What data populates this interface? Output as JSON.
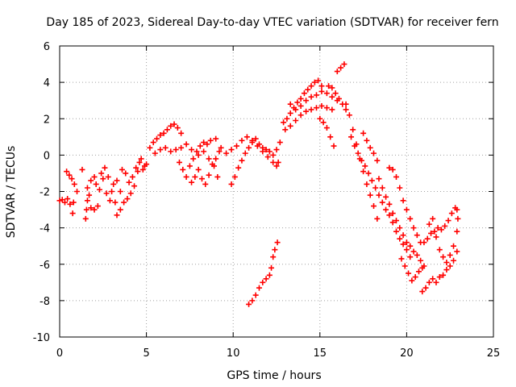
{
  "chart_data": {
    "type": "scatter",
    "title": "Day 185 of 2023, Sidereal Day-to-day VTEC variation (SDTVAR) for receiver fern",
    "xlabel": "GPS time / hours",
    "ylabel": "SDTVAR / TECUs",
    "xlim": [
      0,
      25
    ],
    "ylim": [
      -10,
      6
    ],
    "xticks": [
      0,
      5,
      10,
      15,
      20,
      25
    ],
    "yticks": [
      -10,
      -8,
      -6,
      -4,
      -2,
      0,
      2,
      4,
      6
    ],
    "grid": true,
    "marker": "+",
    "color": "#ff0000",
    "series": [
      {
        "points": [
          [
            0.0,
            -2.5
          ],
          [
            0.15,
            -2.45
          ],
          [
            0.3,
            -2.6
          ],
          [
            0.45,
            -2.4
          ],
          [
            0.6,
            -2.7
          ],
          [
            0.75,
            -3.2
          ],
          [
            0.8,
            -2.6
          ],
          [
            0.4,
            -0.9
          ],
          [
            0.55,
            -1.1
          ],
          [
            0.7,
            -1.3
          ],
          [
            0.85,
            -1.6
          ],
          [
            1.0,
            -2.0
          ],
          [
            1.3,
            -0.8
          ],
          [
            1.5,
            -3.5
          ],
          [
            1.55,
            -3.0
          ],
          [
            1.6,
            -2.5
          ],
          [
            1.7,
            -2.2
          ],
          [
            1.8,
            -2.9
          ],
          [
            2.0,
            -3.0
          ],
          [
            2.2,
            -2.8
          ],
          [
            1.6,
            -1.8
          ],
          [
            1.8,
            -1.4
          ],
          [
            2.0,
            -1.2
          ],
          [
            2.1,
            -1.6
          ],
          [
            2.3,
            -1.9
          ],
          [
            2.5,
            -1.3
          ],
          [
            2.4,
            -1.0
          ],
          [
            2.6,
            -0.7
          ],
          [
            2.8,
            -1.2
          ],
          [
            3.0,
            -2.0
          ],
          [
            3.2,
            -2.6
          ],
          [
            3.3,
            -3.3
          ],
          [
            3.5,
            -3.0
          ],
          [
            2.7,
            -2.1
          ],
          [
            2.9,
            -2.5
          ],
          [
            3.1,
            -1.6
          ],
          [
            3.3,
            -1.4
          ],
          [
            3.5,
            -2.0
          ],
          [
            3.7,
            -2.6
          ],
          [
            3.9,
            -2.4
          ],
          [
            3.6,
            -0.8
          ],
          [
            3.8,
            -1.0
          ],
          [
            4.0,
            -1.5
          ],
          [
            4.2,
            -1.2
          ],
          [
            4.4,
            -0.7
          ],
          [
            4.6,
            -0.4
          ],
          [
            4.8,
            -0.8
          ],
          [
            5.0,
            -0.5
          ],
          [
            4.1,
            -2.1
          ],
          [
            4.3,
            -1.7
          ],
          [
            4.5,
            -0.9
          ],
          [
            4.7,
            -0.2
          ],
          [
            4.9,
            -0.6
          ],
          [
            5.2,
            0.4
          ],
          [
            5.4,
            0.7
          ],
          [
            5.6,
            0.9
          ],
          [
            5.8,
            1.1
          ],
          [
            6.0,
            1.2
          ],
          [
            6.2,
            1.4
          ],
          [
            6.4,
            1.6
          ],
          [
            6.6,
            1.7
          ],
          [
            6.8,
            1.5
          ],
          [
            7.0,
            1.2
          ],
          [
            5.5,
            0.1
          ],
          [
            5.8,
            0.3
          ],
          [
            6.1,
            0.4
          ],
          [
            6.4,
            0.2
          ],
          [
            6.7,
            0.3
          ],
          [
            7.0,
            0.4
          ],
          [
            7.3,
            0.6
          ],
          [
            7.6,
            0.3
          ],
          [
            6.9,
            -0.4
          ],
          [
            7.1,
            -0.8
          ],
          [
            7.3,
            -1.2
          ],
          [
            7.5,
            -0.6
          ],
          [
            7.7,
            -0.2
          ],
          [
            7.9,
            0.2
          ],
          [
            8.1,
            0.5
          ],
          [
            8.3,
            0.7
          ],
          [
            8.5,
            0.6
          ],
          [
            8.7,
            0.8
          ],
          [
            9.0,
            0.9
          ],
          [
            7.6,
            -1.5
          ],
          [
            7.8,
            -1.2
          ],
          [
            8.0,
            -0.8
          ],
          [
            8.2,
            -1.3
          ],
          [
            8.4,
            -1.6
          ],
          [
            8.6,
            -1.1
          ],
          [
            8.8,
            -0.5
          ],
          [
            9.0,
            -0.2
          ],
          [
            9.2,
            0.2
          ],
          [
            8.0,
            0.0
          ],
          [
            8.3,
            0.2
          ],
          [
            8.6,
            -0.2
          ],
          [
            8.9,
            -0.6
          ],
          [
            9.1,
            -1.2
          ],
          [
            9.3,
            0.4
          ],
          [
            9.9,
            -1.6
          ],
          [
            10.1,
            -1.2
          ],
          [
            10.3,
            -0.7
          ],
          [
            10.5,
            -0.3
          ],
          [
            10.7,
            0.1
          ],
          [
            10.9,
            0.4
          ],
          [
            11.1,
            0.7
          ],
          [
            11.3,
            0.9
          ],
          [
            11.5,
            0.6
          ],
          [
            11.7,
            0.4
          ],
          [
            11.9,
            0.3
          ],
          [
            12.1,
            0.2
          ],
          [
            12.3,
            0.0
          ],
          [
            12.5,
            0.3
          ],
          [
            12.7,
            0.7
          ],
          [
            9.6,
            0.1
          ],
          [
            9.9,
            0.3
          ],
          [
            10.2,
            0.5
          ],
          [
            10.5,
            0.8
          ],
          [
            10.8,
            1.0
          ],
          [
            11.1,
            0.8
          ],
          [
            11.4,
            0.5
          ],
          [
            11.7,
            0.2
          ],
          [
            12.0,
            -0.1
          ],
          [
            12.3,
            -0.4
          ],
          [
            12.5,
            -0.6
          ],
          [
            12.6,
            -0.4
          ],
          [
            10.9,
            -8.2
          ],
          [
            11.1,
            -8.0
          ],
          [
            11.3,
            -7.7
          ],
          [
            11.5,
            -7.3
          ],
          [
            11.7,
            -7.0
          ],
          [
            11.9,
            -6.8
          ],
          [
            12.1,
            -6.6
          ],
          [
            12.2,
            -6.2
          ],
          [
            12.3,
            -5.6
          ],
          [
            12.4,
            -5.2
          ],
          [
            12.55,
            -4.8
          ],
          [
            12.9,
            1.8
          ],
          [
            13.1,
            2.0
          ],
          [
            13.3,
            2.3
          ],
          [
            13.5,
            2.6
          ],
          [
            13.7,
            2.9
          ],
          [
            13.9,
            3.1
          ],
          [
            14.1,
            3.4
          ],
          [
            14.3,
            3.6
          ],
          [
            14.5,
            3.8
          ],
          [
            14.7,
            4.0
          ],
          [
            14.9,
            4.1
          ],
          [
            15.1,
            3.8
          ],
          [
            13.0,
            1.4
          ],
          [
            13.3,
            1.6
          ],
          [
            13.6,
            1.9
          ],
          [
            13.9,
            2.2
          ],
          [
            14.2,
            2.4
          ],
          [
            14.5,
            2.5
          ],
          [
            14.8,
            2.6
          ],
          [
            15.1,
            2.7
          ],
          [
            15.4,
            2.6
          ],
          [
            15.7,
            2.5
          ],
          [
            13.3,
            2.8
          ],
          [
            13.6,
            2.5
          ],
          [
            13.9,
            2.7
          ],
          [
            14.2,
            3.0
          ],
          [
            14.5,
            3.2
          ],
          [
            14.8,
            3.3
          ],
          [
            15.1,
            3.5
          ],
          [
            15.4,
            3.4
          ],
          [
            15.7,
            3.2
          ],
          [
            16.0,
            3.0
          ],
          [
            15.0,
            2.0
          ],
          [
            15.2,
            1.8
          ],
          [
            15.4,
            1.5
          ],
          [
            15.6,
            1.0
          ],
          [
            15.8,
            0.5
          ],
          [
            15.5,
            3.8
          ],
          [
            15.7,
            3.7
          ],
          [
            15.9,
            3.4
          ],
          [
            16.1,
            3.1
          ],
          [
            16.3,
            2.8
          ],
          [
            16.5,
            2.5
          ],
          [
            16.7,
            2.2
          ],
          [
            16.0,
            4.6
          ],
          [
            16.2,
            4.8
          ],
          [
            16.4,
            5.0
          ],
          [
            16.5,
            2.8
          ],
          [
            16.7,
            2.2
          ],
          [
            16.9,
            1.4
          ],
          [
            17.1,
            0.6
          ],
          [
            17.3,
            -0.2
          ],
          [
            17.5,
            -0.9
          ],
          [
            17.7,
            -1.6
          ],
          [
            17.9,
            -2.2
          ],
          [
            18.1,
            -2.8
          ],
          [
            18.3,
            -3.5
          ],
          [
            16.8,
            1.0
          ],
          [
            17.0,
            0.5
          ],
          [
            17.2,
            0.1
          ],
          [
            17.4,
            -0.3
          ],
          [
            17.6,
            -0.6
          ],
          [
            17.8,
            -1.0
          ],
          [
            18.0,
            -1.4
          ],
          [
            18.2,
            -1.8
          ],
          [
            18.4,
            -2.2
          ],
          [
            18.6,
            -2.6
          ],
          [
            18.8,
            -3.0
          ],
          [
            19.0,
            -3.3
          ],
          [
            19.2,
            -3.7
          ],
          [
            19.4,
            -4.2
          ],
          [
            19.6,
            -4.6
          ],
          [
            19.8,
            -4.9
          ],
          [
            20.0,
            -5.2
          ],
          [
            20.2,
            -5.6
          ],
          [
            17.5,
            1.2
          ],
          [
            17.7,
            0.8
          ],
          [
            17.9,
            0.4
          ],
          [
            18.1,
            0.1
          ],
          [
            18.3,
            -0.3
          ],
          [
            18.4,
            -1.3
          ],
          [
            18.6,
            -1.8
          ],
          [
            18.8,
            -2.3
          ],
          [
            19.0,
            -2.7
          ],
          [
            19.2,
            -3.2
          ],
          [
            19.4,
            -3.6
          ],
          [
            19.6,
            -4.0
          ],
          [
            19.8,
            -4.4
          ],
          [
            20.0,
            -4.8
          ],
          [
            20.2,
            -5.0
          ],
          [
            20.4,
            -5.3
          ],
          [
            20.6,
            -5.5
          ],
          [
            20.8,
            -5.8
          ],
          [
            21.0,
            -6.1
          ],
          [
            19.0,
            -0.7
          ],
          [
            19.2,
            -0.8
          ],
          [
            19.4,
            -1.2
          ],
          [
            19.6,
            -1.8
          ],
          [
            19.8,
            -2.5
          ],
          [
            20.0,
            -3.0
          ],
          [
            20.2,
            -3.5
          ],
          [
            20.4,
            -4.0
          ],
          [
            20.6,
            -4.4
          ],
          [
            20.8,
            -4.8
          ],
          [
            19.7,
            -5.7
          ],
          [
            19.9,
            -6.1
          ],
          [
            20.1,
            -6.5
          ],
          [
            20.3,
            -6.9
          ],
          [
            20.5,
            -6.7
          ],
          [
            20.7,
            -6.4
          ],
          [
            20.9,
            -6.2
          ],
          [
            20.9,
            -7.5
          ],
          [
            21.1,
            -7.3
          ],
          [
            21.3,
            -7.0
          ],
          [
            21.5,
            -6.8
          ],
          [
            21.7,
            -7.0
          ],
          [
            21.9,
            -6.7
          ],
          [
            22.1,
            -6.6
          ],
          [
            22.3,
            -6.3
          ],
          [
            22.5,
            -6.1
          ],
          [
            22.7,
            -5.8
          ],
          [
            22.9,
            -5.3
          ],
          [
            21.0,
            -4.8
          ],
          [
            21.2,
            -4.6
          ],
          [
            21.4,
            -4.3
          ],
          [
            21.6,
            -4.2
          ],
          [
            21.8,
            -4.0
          ],
          [
            22.0,
            -4.1
          ],
          [
            22.2,
            -3.9
          ],
          [
            22.4,
            -3.6
          ],
          [
            22.6,
            -3.2
          ],
          [
            22.8,
            -2.9
          ],
          [
            21.3,
            -3.8
          ],
          [
            21.5,
            -3.5
          ],
          [
            21.7,
            -4.5
          ],
          [
            21.9,
            -5.2
          ],
          [
            22.1,
            -5.6
          ],
          [
            22.3,
            -5.9
          ],
          [
            22.5,
            -5.5
          ],
          [
            22.7,
            -5.0
          ],
          [
            22.9,
            -4.2
          ],
          [
            22.95,
            -3.5
          ],
          [
            22.9,
            -3.0
          ]
        ]
      }
    ]
  }
}
